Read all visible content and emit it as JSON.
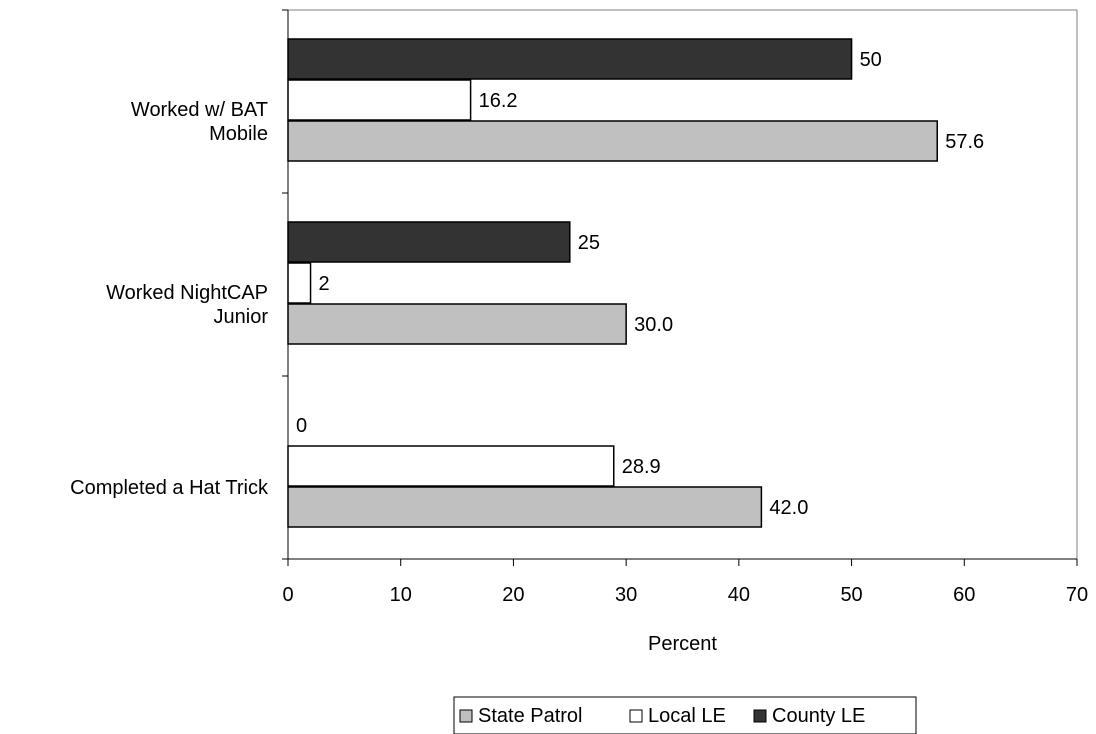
{
  "chart_data": {
    "type": "bar",
    "orientation": "horizontal",
    "title": "",
    "xlabel": "Percent",
    "ylabel": "",
    "xlim": [
      0,
      70
    ],
    "x_ticks": [
      "0",
      "10",
      "20",
      "30",
      "40",
      "50",
      "60",
      "70"
    ],
    "categories": [
      "Worked w/ BAT Mobile",
      "Worked NightCAP Junior",
      "Completed a Hat Trick"
    ],
    "category_lines": [
      [
        "Worked w/ BAT",
        "Mobile"
      ],
      [
        "Worked NightCAP",
        "Junior"
      ],
      [
        "Completed a Hat Trick"
      ]
    ],
    "series": [
      {
        "name": "County LE",
        "color": "#333333",
        "values": [
          50,
          25,
          0
        ],
        "labels": [
          "50",
          "25",
          "0"
        ]
      },
      {
        "name": "Local LE",
        "color": "#ffffff",
        "values": [
          16.2,
          2,
          28.9
        ],
        "labels": [
          "16.2",
          "2",
          "28.9"
        ]
      },
      {
        "name": "State Patrol",
        "color": "#c0c0c0",
        "values": [
          57.6,
          30.0,
          42.0
        ],
        "labels": [
          "57.6",
          "30.0",
          "42.0"
        ]
      }
    ],
    "legend": {
      "position": "bottom",
      "order": [
        "State Patrol",
        "Local LE",
        "County LE"
      ]
    },
    "grid": false
  }
}
